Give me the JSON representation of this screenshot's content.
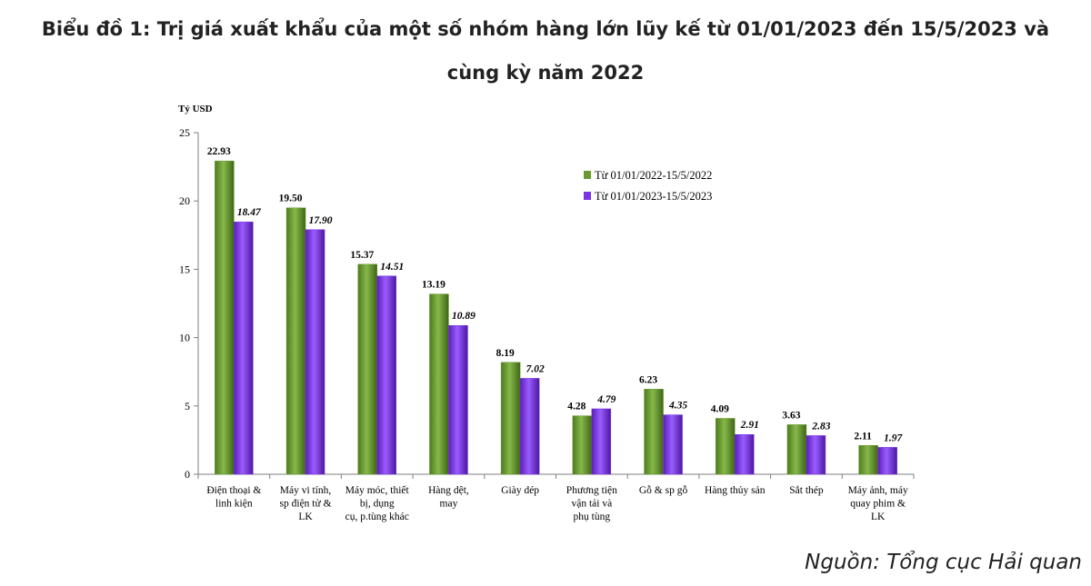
{
  "title_line1": "Biểu đồ 1: Trị giá xuất khẩu của một số nhóm hàng lớn lũy kế từ 01/01/2023 đến 15/5/2023 và",
  "title_line2": "cùng kỳ năm 2022",
  "source": "Nguồn: Tổng cục Hải quan",
  "colors": {
    "series_2022": "#6a9a2e",
    "series_2023": "#7a35e0",
    "axis": "#7f7f7f"
  },
  "chart_data": {
    "type": "bar",
    "ylabel": "Tỷ USD",
    "ylim": [
      0,
      25
    ],
    "yticks": [
      0,
      5,
      10,
      15,
      20,
      25
    ],
    "categories": [
      [
        "Điện thoại &",
        "linh kiện"
      ],
      [
        "Máy vi tính,",
        "sp điện tử &",
        "LK"
      ],
      [
        "Máy móc, thiết",
        "bị, dụng",
        "cụ, p.tùng khác"
      ],
      [
        "Hàng dệt,",
        "may"
      ],
      [
        "Giày dép"
      ],
      [
        "Phương tiện",
        "vận tải và",
        "phụ tùng"
      ],
      [
        "Gỗ & sp gỗ"
      ],
      [
        "Hàng thủy sản"
      ],
      [
        "Sắt thép"
      ],
      [
        "Máy ảnh, máy",
        "quay phim &",
        "LK"
      ]
    ],
    "series": [
      {
        "name": "Từ 01/01/2022-15/5/2022",
        "values": [
          22.93,
          19.5,
          15.37,
          13.19,
          8.19,
          4.28,
          6.23,
          4.09,
          3.63,
          2.11
        ],
        "labels": [
          "22.93",
          "19.50",
          "15.37",
          "13.19",
          "8.19",
          "4.28",
          "6.23",
          "4.09",
          "3.63",
          "2.11"
        ]
      },
      {
        "name": "Từ 01/01/2023-15/5/2023",
        "values": [
          18.47,
          17.9,
          14.51,
          10.89,
          7.02,
          4.79,
          4.35,
          2.91,
          2.83,
          1.97
        ],
        "labels": [
          "18.47",
          "17.90",
          "14.51",
          "10.89",
          "7.02",
          "4.79",
          "4.35",
          "2.91",
          "2.83",
          "1.97"
        ]
      }
    ],
    "legend_position": "top-right",
    "grid": false
  }
}
